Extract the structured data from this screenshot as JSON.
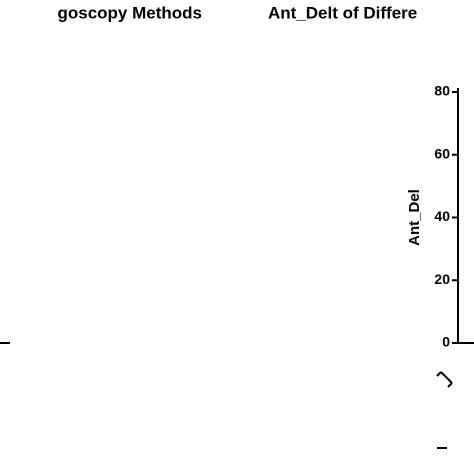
{
  "chart_data": [
    {
      "type": "bar",
      "title": "goscopy Methods"
    },
    {
      "type": "bar",
      "title": "Ant_Delt of Differe",
      "y_label": "Ant_Del",
      "ylim": [
        0,
        80
      ],
      "yticks": [
        0,
        20,
        40,
        60,
        80
      ]
    }
  ]
}
